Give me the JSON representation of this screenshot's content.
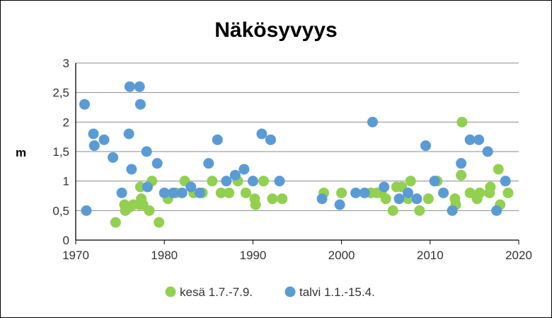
{
  "chart_data": {
    "type": "scatter",
    "title": "Näkösyvyys",
    "xlabel": "",
    "ylabel": "m",
    "xlim": [
      1970,
      2020
    ],
    "ylim": [
      0,
      3
    ],
    "x_ticks": [
      "1970",
      "1980",
      "1990",
      "2000",
      "2010",
      "2020"
    ],
    "y_ticks": [
      "0",
      "0,5",
      "1",
      "1,5",
      "2",
      "2,5",
      "3"
    ],
    "grid": true,
    "legend": "bottom",
    "series": [
      {
        "name": "kesä 1.7.-7.9.",
        "color": "#92D050",
        "points": [
          [
            1974.5,
            0.3
          ],
          [
            1975.5,
            0.6
          ],
          [
            1975.6,
            0.5
          ],
          [
            1976.0,
            0.55
          ],
          [
            1976.5,
            0.6
          ],
          [
            1977.2,
            0.6
          ],
          [
            1977.3,
            0.9
          ],
          [
            1977.4,
            0.7
          ],
          [
            1977.6,
            0.6
          ],
          [
            1978.3,
            0.5
          ],
          [
            1978.6,
            1.0
          ],
          [
            1979.4,
            0.3
          ],
          [
            1980.4,
            0.7
          ],
          [
            1981.3,
            0.8
          ],
          [
            1982.3,
            1.0
          ],
          [
            1983.3,
            0.8
          ],
          [
            1984.3,
            0.8
          ],
          [
            1985.4,
            1.0
          ],
          [
            1986.4,
            0.8
          ],
          [
            1987.3,
            0.8
          ],
          [
            1988.3,
            1.0
          ],
          [
            1989.2,
            0.8
          ],
          [
            1990.2,
            0.7
          ],
          [
            1990.3,
            0.6
          ],
          [
            1991.2,
            1.0
          ],
          [
            1992.2,
            0.7
          ],
          [
            1993.3,
            0.7
          ],
          [
            1998.0,
            0.8
          ],
          [
            2000.0,
            0.8
          ],
          [
            2003.3,
            0.8
          ],
          [
            2004.0,
            0.8
          ],
          [
            2004.5,
            0.8
          ],
          [
            2005.0,
            0.7
          ],
          [
            2005.8,
            0.5
          ],
          [
            2006.2,
            0.9
          ],
          [
            2006.8,
            0.9
          ],
          [
            2007.5,
            0.7
          ],
          [
            2007.8,
            1.0
          ],
          [
            2008.8,
            0.5
          ],
          [
            2009.8,
            0.7
          ],
          [
            2010.8,
            1.0
          ],
          [
            2012.8,
            0.7
          ],
          [
            2012.9,
            0.6
          ],
          [
            2013.5,
            1.1
          ],
          [
            2013.6,
            2.0
          ],
          [
            2014.5,
            0.8
          ],
          [
            2015.3,
            0.7
          ],
          [
            2015.6,
            0.8
          ],
          [
            2016.7,
            0.8
          ],
          [
            2016.8,
            0.9
          ],
          [
            2017.7,
            1.2
          ],
          [
            2017.9,
            0.6
          ],
          [
            2018.8,
            0.8
          ]
        ]
      },
      {
        "name": "talvi 1.1.-15.4.",
        "color": "#5B9BD5",
        "points": [
          [
            1971.0,
            2.3
          ],
          [
            1971.2,
            0.5
          ],
          [
            1972.0,
            1.8
          ],
          [
            1972.1,
            1.6
          ],
          [
            1973.2,
            1.7
          ],
          [
            1974.2,
            1.4
          ],
          [
            1975.2,
            0.8
          ],
          [
            1976.0,
            1.8
          ],
          [
            1976.1,
            2.6
          ],
          [
            1976.3,
            1.2
          ],
          [
            1977.2,
            2.6
          ],
          [
            1977.3,
            2.3
          ],
          [
            1978.0,
            1.5
          ],
          [
            1978.1,
            0.9
          ],
          [
            1979.2,
            1.3
          ],
          [
            1980.0,
            0.8
          ],
          [
            1981.0,
            0.8
          ],
          [
            1982.0,
            0.8
          ],
          [
            1983.0,
            0.9
          ],
          [
            1984.0,
            0.8
          ],
          [
            1985.0,
            1.3
          ],
          [
            1986.0,
            1.7
          ],
          [
            1987.0,
            1.0
          ],
          [
            1988.0,
            1.1
          ],
          [
            1989.0,
            1.2
          ],
          [
            1990.0,
            1.0
          ],
          [
            1991.0,
            1.8
          ],
          [
            1992.0,
            1.7
          ],
          [
            1993.0,
            1.0
          ],
          [
            1997.8,
            0.7
          ],
          [
            1999.8,
            0.6
          ],
          [
            2001.6,
            0.8
          ],
          [
            2002.6,
            0.8
          ],
          [
            2003.5,
            2.0
          ],
          [
            2004.8,
            0.9
          ],
          [
            2006.5,
            0.7
          ],
          [
            2007.5,
            0.8
          ],
          [
            2008.5,
            0.7
          ],
          [
            2009.5,
            1.6
          ],
          [
            2010.5,
            1.0
          ],
          [
            2011.5,
            0.8
          ],
          [
            2012.5,
            0.5
          ],
          [
            2013.5,
            1.3
          ],
          [
            2014.5,
            1.7
          ],
          [
            2015.5,
            1.7
          ],
          [
            2016.5,
            1.5
          ],
          [
            2017.5,
            0.5
          ],
          [
            2018.5,
            1.0
          ]
        ]
      }
    ]
  }
}
